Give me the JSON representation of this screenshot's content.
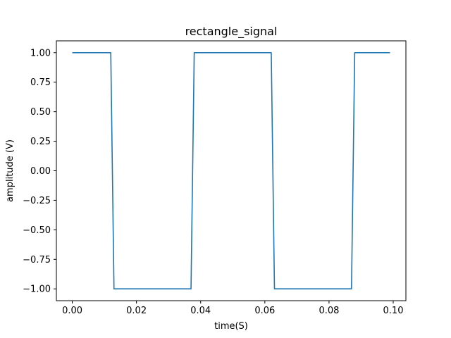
{
  "chart_data": {
    "type": "line",
    "title": "rectangle_signal",
    "xlabel": "time(S)",
    "ylabel": "amplitude (V)",
    "xlim": [
      -0.00495,
      0.10395
    ],
    "ylim": [
      -1.1,
      1.1
    ],
    "xticks": [
      0.0,
      0.02,
      0.04,
      0.06,
      0.08,
      0.1
    ],
    "xtick_labels": [
      "0.00",
      "0.02",
      "0.04",
      "0.06",
      "0.08",
      "0.10"
    ],
    "yticks": [
      1.0,
      0.75,
      0.5,
      0.25,
      0.0,
      -0.25,
      -0.5,
      -0.75,
      -1.0
    ],
    "ytick_labels": [
      "1.00",
      "0.75",
      "0.50",
      "0.25",
      "0.00",
      "−0.25",
      "−0.50",
      "−0.75",
      "−1.00"
    ],
    "grid": false,
    "series": [
      {
        "color": "#1f77b4",
        "x": [
          0.0,
          0.012,
          0.013,
          0.037,
          0.038,
          0.062,
          0.063,
          0.087,
          0.088,
          0.099
        ],
        "y": [
          1,
          1,
          -1,
          -1,
          1,
          1,
          -1,
          -1,
          1,
          1
        ]
      }
    ]
  }
}
